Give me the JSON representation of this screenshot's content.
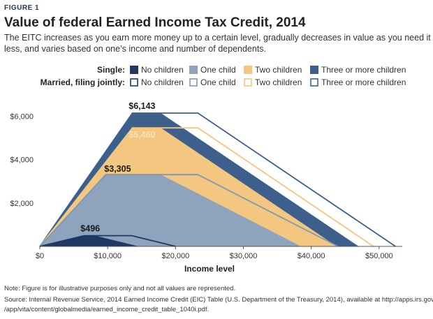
{
  "figure_label": "FIGURE 1",
  "title": "Value of federal Earned Income Tax Credit, 2014",
  "subtitle_lines": [
    "The EITC increases as you earn more money up to a certain level, gradually decreases in value as you need it",
    "less, and varies based on one’s income and number of dependents."
  ],
  "legend": {
    "single_label": "Single:",
    "married_label": "Married, filing jointly:",
    "items": [
      "No children",
      "One child",
      "Two children",
      "Three or more children"
    ]
  },
  "colors": {
    "no_children": "#1f3864",
    "one_child": "#8ea3bc",
    "two_children": "#f3c77f",
    "three_plus": "#3d5f8c",
    "married_one_child": "#7e97b5",
    "axis": "#555555",
    "label_dark": "#1a1a1a",
    "label_light": "#f3e3b8"
  },
  "chart_data": {
    "type": "area",
    "xlabel": "Income level",
    "ylabel": "",
    "xlim": [
      0,
      53000
    ],
    "ylim": [
      0,
      6143
    ],
    "x_ticks": [
      0,
      10000,
      20000,
      30000,
      40000,
      50000
    ],
    "x_tick_labels": [
      "$0",
      "$10,000",
      "$20,000",
      "$30,000",
      "$40,000",
      "$50,000"
    ],
    "y_ticks": [
      2000,
      4000,
      6000
    ],
    "y_tick_labels": [
      "$2,000",
      "$4,000",
      "$6,000"
    ],
    "series": [
      {
        "name": "Three or more children",
        "status": "Single",
        "x": [
          0,
          13650,
          17850,
          46997
        ],
        "y": [
          0,
          6143,
          6143,
          0
        ]
      },
      {
        "name": "Two children",
        "status": "Single",
        "x": [
          0,
          13650,
          17850,
          43756
        ],
        "y": [
          0,
          5460,
          5460,
          0
        ]
      },
      {
        "name": "One child",
        "status": "Single",
        "x": [
          0,
          9700,
          17850,
          38511
        ],
        "y": [
          0,
          3305,
          3305,
          0
        ]
      },
      {
        "name": "No children",
        "status": "Single",
        "x": [
          0,
          6500,
          8150,
          14590
        ],
        "y": [
          0,
          496,
          496,
          0
        ]
      },
      {
        "name": "Three or more children",
        "status": "Married, filing jointly",
        "x": [
          0,
          13650,
          23300,
          52427
        ],
        "y": [
          0,
          6143,
          6143,
          0
        ]
      },
      {
        "name": "Two children",
        "status": "Married, filing jointly",
        "x": [
          0,
          13650,
          23300,
          49186
        ],
        "y": [
          0,
          5460,
          5460,
          0
        ]
      },
      {
        "name": "One child",
        "status": "Married, filing jointly",
        "x": [
          0,
          9700,
          23300,
          43941
        ],
        "y": [
          0,
          3305,
          3305,
          0
        ]
      },
      {
        "name": "No children",
        "status": "Married, filing jointly",
        "x": [
          0,
          6500,
          13550,
          20020
        ],
        "y": [
          0,
          496,
          496,
          0
        ]
      }
    ],
    "annotations": [
      {
        "text": "$6,143",
        "x": 13100,
        "y": 6143
      },
      {
        "text": "$5,460",
        "x": 13100,
        "y": 5460
      },
      {
        "text": "$3,305",
        "x": 9500,
        "y": 3305
      },
      {
        "text": "$496",
        "x": 6000,
        "y": 496
      }
    ]
  },
  "note": "Note: Figure is for illustrative purposes only and not all values are represented.",
  "source_lines": [
    "Source: Internal Revenue Service, 2014 Earned Income Credit (EIC) Table (U.S. Department of the Treasury, 2014), available at http://apps.irs.gov-",
    "/app/vita/content/globalmedia/earned_income_credit_table_1040i.pdf."
  ]
}
